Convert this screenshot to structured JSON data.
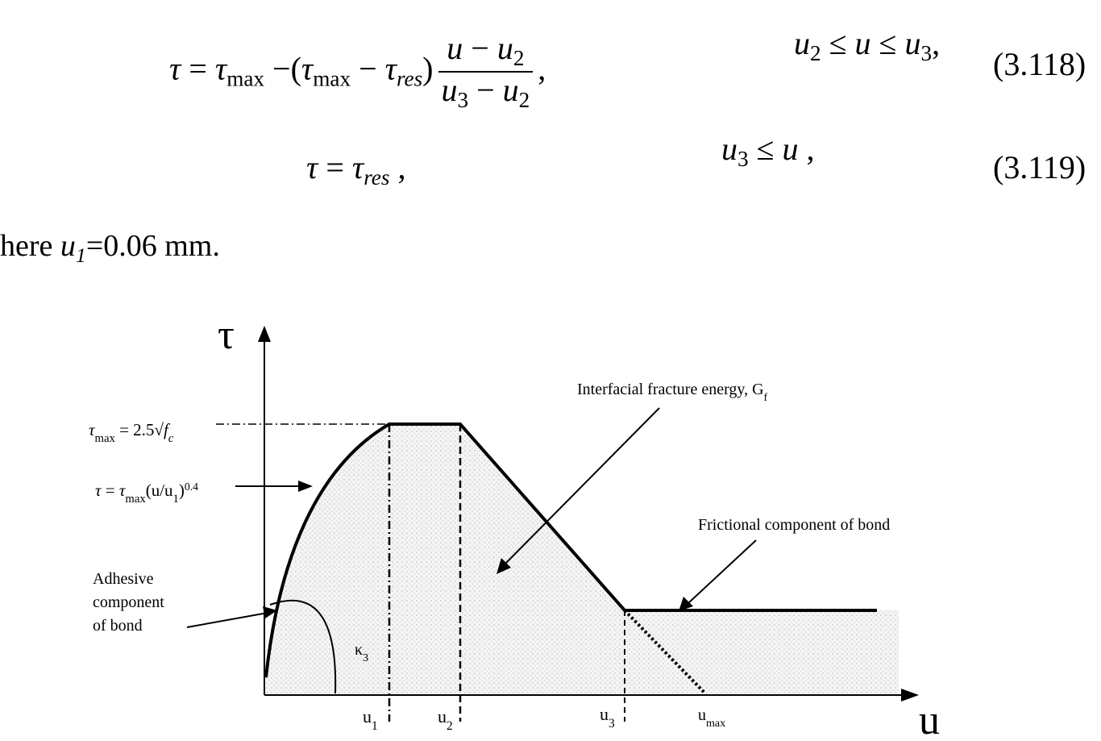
{
  "equations": [
    {
      "formula": [
        {
          "text": "τ"
        },
        {
          "text": " = ",
          "roman": true
        },
        {
          "text": "τ"
        },
        {
          "text": "max",
          "pos": "sub",
          "roman": true
        },
        {
          "text": " −(",
          "roman": true
        },
        {
          "text": "τ"
        },
        {
          "text": "max",
          "pos": "sub",
          "roman": true
        },
        {
          "text": " − ",
          "roman": true
        },
        {
          "text": "τ"
        },
        {
          "text": "res",
          "pos": "sub"
        },
        {
          "text": ")",
          "roman": true
        },
        {
          "numerator": [
            {
              "text": "u"
            },
            {
              "text": " − ",
              "roman": true
            },
            {
              "text": "u"
            },
            {
              "text": "2",
              "pos": "sub",
              "roman": true
            }
          ],
          "denominator": [
            {
              "text": "u"
            },
            {
              "text": "3",
              "pos": "sub",
              "roman": true
            },
            {
              "text": " − ",
              "roman": true
            },
            {
              "text": "u"
            },
            {
              "text": "2",
              "pos": "sub",
              "roman": true
            }
          ]
        },
        {
          "text": ",",
          "roman": true
        }
      ],
      "condition": [
        {
          "text": "u"
        },
        {
          "text": "2",
          "pos": "sub",
          "roman": true
        },
        {
          "text": " ≤ ",
          "roman": true
        },
        {
          "text": "u"
        },
        {
          "text": " ≤ ",
          "roman": true
        },
        {
          "text": "u"
        },
        {
          "text": "3",
          "pos": "sub",
          "roman": true
        },
        {
          "text": ",",
          "roman": true
        }
      ],
      "number": "(3.118)"
    },
    {
      "formula": [
        {
          "text": "τ"
        },
        {
          "text": " = ",
          "roman": true
        },
        {
          "text": "τ"
        },
        {
          "text": "res",
          "pos": "sub"
        },
        {
          "text": " ,",
          "roman": true
        }
      ],
      "condition": [
        {
          "text": "u"
        },
        {
          "text": "3",
          "pos": "sub",
          "roman": true
        },
        {
          "text": " ≤ ",
          "roman": true
        },
        {
          "text": "u"
        },
        {
          "text": " ,",
          "roman": true
        }
      ],
      "number": "(3.119)"
    }
  ],
  "note": [
    {
      "text": "here ",
      "roman": true
    },
    {
      "text": "u"
    },
    {
      "text": "1",
      "pos": "sub"
    },
    {
      "text": "=0.06 mm.",
      "roman": true
    }
  ],
  "diagram": {
    "y_axis_label": "τ",
    "x_axis_label": "u",
    "tau_max_label": [
      {
        "text": "τ",
        "italic": true
      },
      {
        "text": "max",
        "pos": "sub"
      },
      {
        "text": " = 2.5√"
      },
      {
        "text": "f",
        "italic": true
      },
      {
        "text": "c",
        "pos": "sub",
        "italic": true
      }
    ],
    "power_law_label": [
      {
        "text": "τ",
        "italic": true
      },
      {
        "text": " = "
      },
      {
        "text": "τ",
        "italic": true
      },
      {
        "text": "max",
        "pos": "sub"
      },
      {
        "text": "(u/u"
      },
      {
        "text": "1",
        "pos": "sub"
      },
      {
        "text": ")"
      },
      {
        "text": "0.4",
        "pos": "sup"
      }
    ],
    "adhesive_label": [
      "Adhesive",
      "component",
      "of bond"
    ],
    "kappa_label": [
      {
        "text": "κ"
      },
      {
        "text": "3",
        "pos": "sub"
      }
    ],
    "fracture_energy_label": [
      {
        "text": "Interfacial fracture energy, G"
      },
      {
        "text": "f",
        "pos": "sub"
      }
    ],
    "frictional_label": "Frictional component of bond",
    "ticks": [
      [
        {
          "text": "u"
        },
        {
          "text": "1",
          "pos": "sub"
        }
      ],
      [
        {
          "text": "u"
        },
        {
          "text": "2",
          "pos": "sub"
        }
      ],
      [
        {
          "text": "u"
        },
        {
          "text": "3",
          "pos": "sub"
        }
      ],
      [
        {
          "text": "u"
        },
        {
          "text": "max",
          "pos": "sub"
        }
      ]
    ]
  }
}
